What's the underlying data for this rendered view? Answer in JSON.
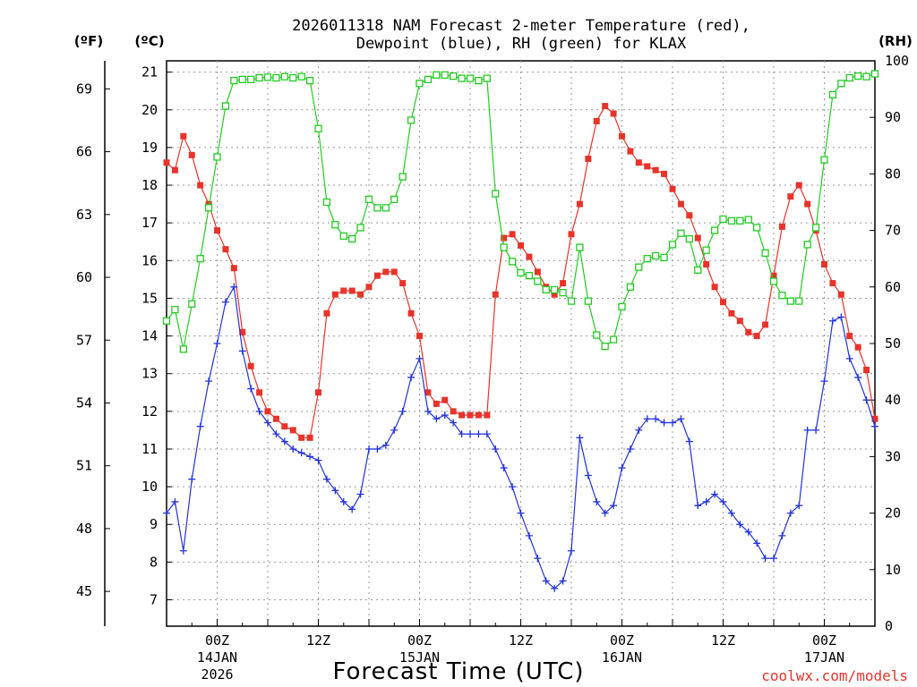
{
  "chart_data": {
    "type": "line",
    "title_line1": "2026011318 NAM Forecast 2-meter Temperature (red),",
    "title_line2": "Dewpoint (blue), RH (green) for KLAX",
    "xlabel": "Forecast Time (UTC)",
    "credit": "coolwx.com/models",
    "unit_f": "(ºF)",
    "unit_c": "(ºC)",
    "unit_rh": "(RH)",
    "y_c_range": [
      6.3,
      21.3
    ],
    "y_rh_range": [
      0,
      100
    ],
    "x_range_hours": [
      18,
      102
    ],
    "c_ticks": [
      7,
      8,
      9,
      10,
      11,
      12,
      13,
      14,
      15,
      16,
      17,
      18,
      19,
      20,
      21
    ],
    "f_ticks": [
      45,
      48,
      51,
      54,
      57,
      60,
      63,
      66,
      69
    ],
    "rh_ticks": [
      0,
      10,
      20,
      30,
      40,
      50,
      60,
      70,
      80,
      90,
      100
    ],
    "x_ticks": [
      {
        "hour": 24,
        "label": "00Z",
        "date": "14JAN",
        "year": "2026"
      },
      {
        "hour": 36,
        "label": "12Z",
        "date": "",
        "year": ""
      },
      {
        "hour": 48,
        "label": "00Z",
        "date": "15JAN",
        "year": ""
      },
      {
        "hour": 60,
        "label": "12Z",
        "date": "",
        "year": ""
      },
      {
        "hour": 72,
        "label": "00Z",
        "date": "16JAN",
        "year": ""
      },
      {
        "hour": 84,
        "label": "12Z",
        "date": "",
        "year": ""
      },
      {
        "hour": 96,
        "label": "00Z",
        "date": "17JAN",
        "year": ""
      }
    ],
    "hours": [
      18,
      19,
      20,
      21,
      22,
      23,
      24,
      25,
      26,
      27,
      28,
      29,
      30,
      31,
      32,
      33,
      34,
      35,
      36,
      37,
      38,
      39,
      40,
      41,
      42,
      43,
      44,
      45,
      46,
      47,
      48,
      49,
      50,
      51,
      52,
      53,
      54,
      55,
      56,
      57,
      58,
      59,
      60,
      61,
      62,
      63,
      64,
      65,
      66,
      67,
      68,
      69,
      70,
      71,
      72,
      73,
      74,
      75,
      76,
      77,
      78,
      79,
      80,
      81,
      82,
      83,
      84,
      85,
      86,
      87,
      88,
      89,
      90,
      91,
      92,
      93,
      94,
      95,
      96,
      97,
      98,
      99,
      100,
      101,
      102
    ],
    "series": [
      {
        "name": "2-meter Temperature",
        "unit": "C",
        "color": "#e8332a",
        "marker": "square",
        "values": [
          18.6,
          18.4,
          19.3,
          18.8,
          18.0,
          17.5,
          16.8,
          16.3,
          15.8,
          14.1,
          13.2,
          12.5,
          12.0,
          11.8,
          11.6,
          11.5,
          11.3,
          11.3,
          12.5,
          14.6,
          15.1,
          15.2,
          15.2,
          15.1,
          15.3,
          15.6,
          15.7,
          15.7,
          15.4,
          14.6,
          14.0,
          12.5,
          12.2,
          12.3,
          12.0,
          11.9,
          11.9,
          11.9,
          11.9,
          15.1,
          16.6,
          16.7,
          16.4,
          16.1,
          15.7,
          15.3,
          15.1,
          15.4,
          16.7,
          17.5,
          18.7,
          19.7,
          20.1,
          19.9,
          19.3,
          18.9,
          18.6,
          18.5,
          18.4,
          18.3,
          17.9,
          17.5,
          17.2,
          16.6,
          15.9,
          15.3,
          14.9,
          14.6,
          14.4,
          14.1,
          14.0,
          14.3,
          15.6,
          16.9,
          17.7,
          18.0,
          17.5,
          16.8,
          15.9,
          15.4,
          15.1,
          14.0,
          13.7,
          13.1,
          11.8
        ]
      },
      {
        "name": "Dewpoint",
        "unit": "C",
        "color": "#2233dd",
        "marker": "plus",
        "values": [
          9.3,
          9.6,
          8.3,
          10.2,
          11.6,
          12.8,
          13.8,
          14.9,
          15.3,
          13.6,
          12.6,
          12.0,
          11.7,
          11.4,
          11.2,
          11.0,
          10.9,
          10.8,
          10.7,
          10.2,
          9.9,
          9.6,
          9.4,
          9.8,
          11.0,
          11.0,
          11.1,
          11.5,
          12.0,
          12.9,
          13.4,
          12.0,
          11.8,
          11.9,
          11.7,
          11.4,
          11.4,
          11.4,
          11.4,
          11.0,
          10.5,
          10.0,
          9.3,
          8.7,
          8.1,
          7.5,
          7.3,
          7.5,
          8.3,
          11.3,
          10.3,
          9.6,
          9.3,
          9.5,
          10.5,
          11.0,
          11.5,
          11.8,
          11.8,
          11.7,
          11.7,
          11.8,
          11.2,
          9.5,
          9.6,
          9.8,
          9.6,
          9.3,
          9.0,
          8.8,
          8.5,
          8.1,
          8.1,
          8.7,
          9.3,
          9.5,
          11.5,
          11.5,
          12.8,
          14.4,
          14.5,
          13.4,
          12.9,
          12.3,
          11.6
        ]
      },
      {
        "name": "RH",
        "unit": "%",
        "color": "#22cc22",
        "marker": "open-square",
        "values": [
          54,
          56,
          49,
          57,
          65,
          74,
          83,
          92,
          96.5,
          96.7,
          96.7,
          97.0,
          97.1,
          97.0,
          97.2,
          97.0,
          97.2,
          96.5,
          88,
          75,
          71,
          69,
          68.5,
          70.5,
          75.5,
          74,
          74,
          75.5,
          79.5,
          89.5,
          96,
          96.7,
          97.5,
          97.5,
          97.3,
          96.9,
          96.9,
          96.5,
          96.9,
          76.5,
          67,
          64.5,
          62.5,
          62,
          61,
          59.5,
          59.5,
          59,
          57.5,
          67,
          57.5,
          51.5,
          49.5,
          50.7,
          56.5,
          60,
          63.5,
          65,
          65.5,
          65.2,
          67.5,
          69.5,
          68.5,
          63,
          66.5,
          70,
          72,
          71.7,
          71.7,
          71.9,
          70.5,
          66,
          61,
          58.5,
          57.5,
          57.5,
          67.5,
          70.5,
          82.5,
          94,
          96,
          97,
          97.3,
          97.2,
          97.7
        ]
      }
    ]
  }
}
